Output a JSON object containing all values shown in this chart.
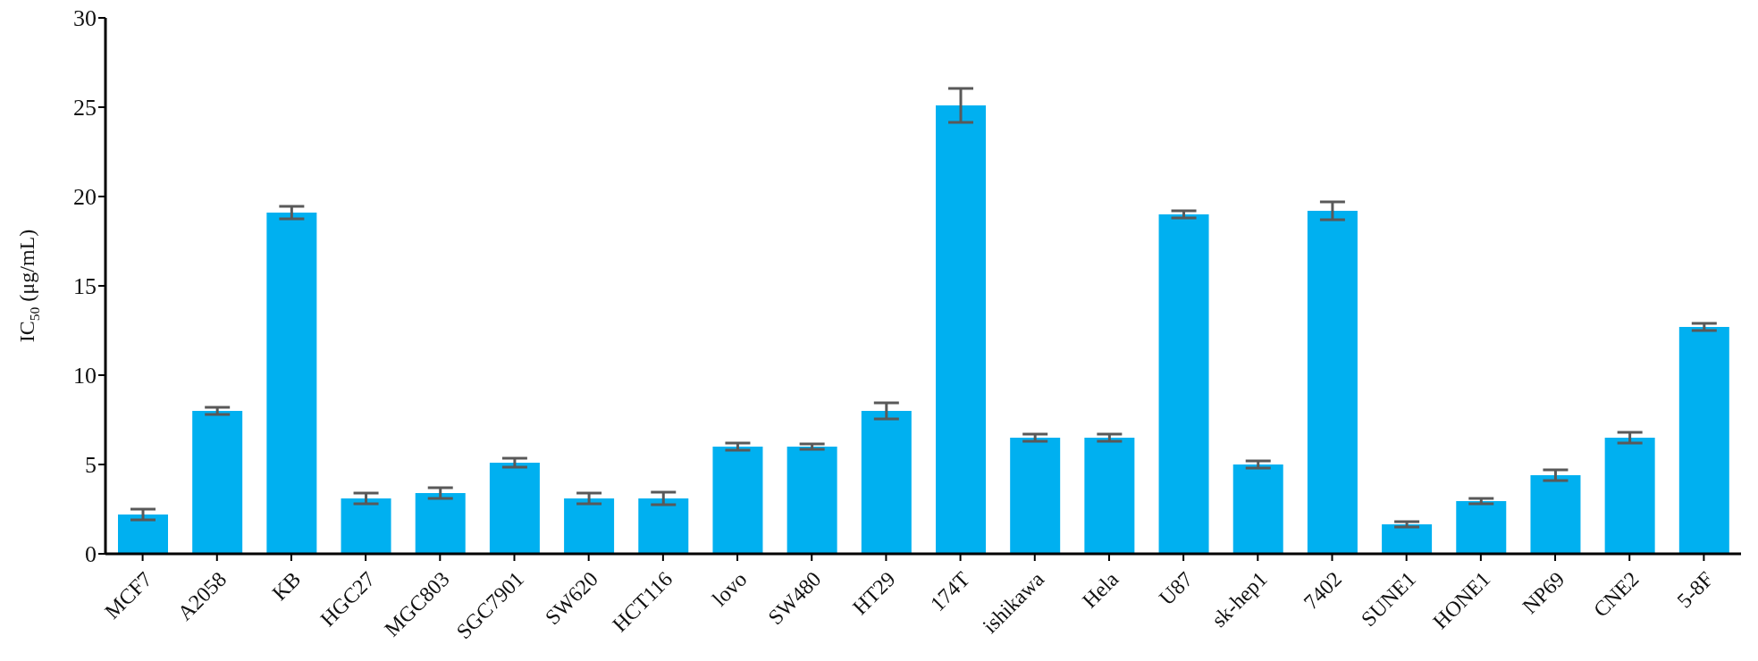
{
  "chart_data": {
    "type": "bar",
    "ylabel": "IC$_{50}$ (μg/mL)",
    "categories": [
      "MCF7",
      "A2058",
      "KB",
      "HGC27",
      "MGC803",
      "SGC7901",
      "SW620",
      "HCT116",
      "lovo",
      "SW480",
      "HT29",
      "174T",
      "ishikawa",
      "Hela",
      "U87",
      "sk-hep1",
      "7402",
      "SUNE1",
      "HONE1",
      "NP69",
      "CNE2",
      "5-8F"
    ],
    "values": [
      2.2,
      8.0,
      19.1,
      3.1,
      3.4,
      5.1,
      3.1,
      3.1,
      6.0,
      6.0,
      8.0,
      25.1,
      6.5,
      6.5,
      19.0,
      5.0,
      19.2,
      1.65,
      2.95,
      4.4,
      6.5,
      12.7
    ],
    "errors": [
      0.3,
      0.2,
      0.35,
      0.3,
      0.3,
      0.25,
      0.3,
      0.35,
      0.2,
      0.15,
      0.45,
      0.95,
      0.2,
      0.2,
      0.2,
      0.2,
      0.5,
      0.15,
      0.15,
      0.3,
      0.3,
      0.2
    ],
    "color": "#00b0f0",
    "ylim": [
      0,
      30
    ],
    "yticks": [
      0,
      5,
      10,
      15,
      20,
      25,
      30
    ],
    "grid": false,
    "legend": false
  }
}
